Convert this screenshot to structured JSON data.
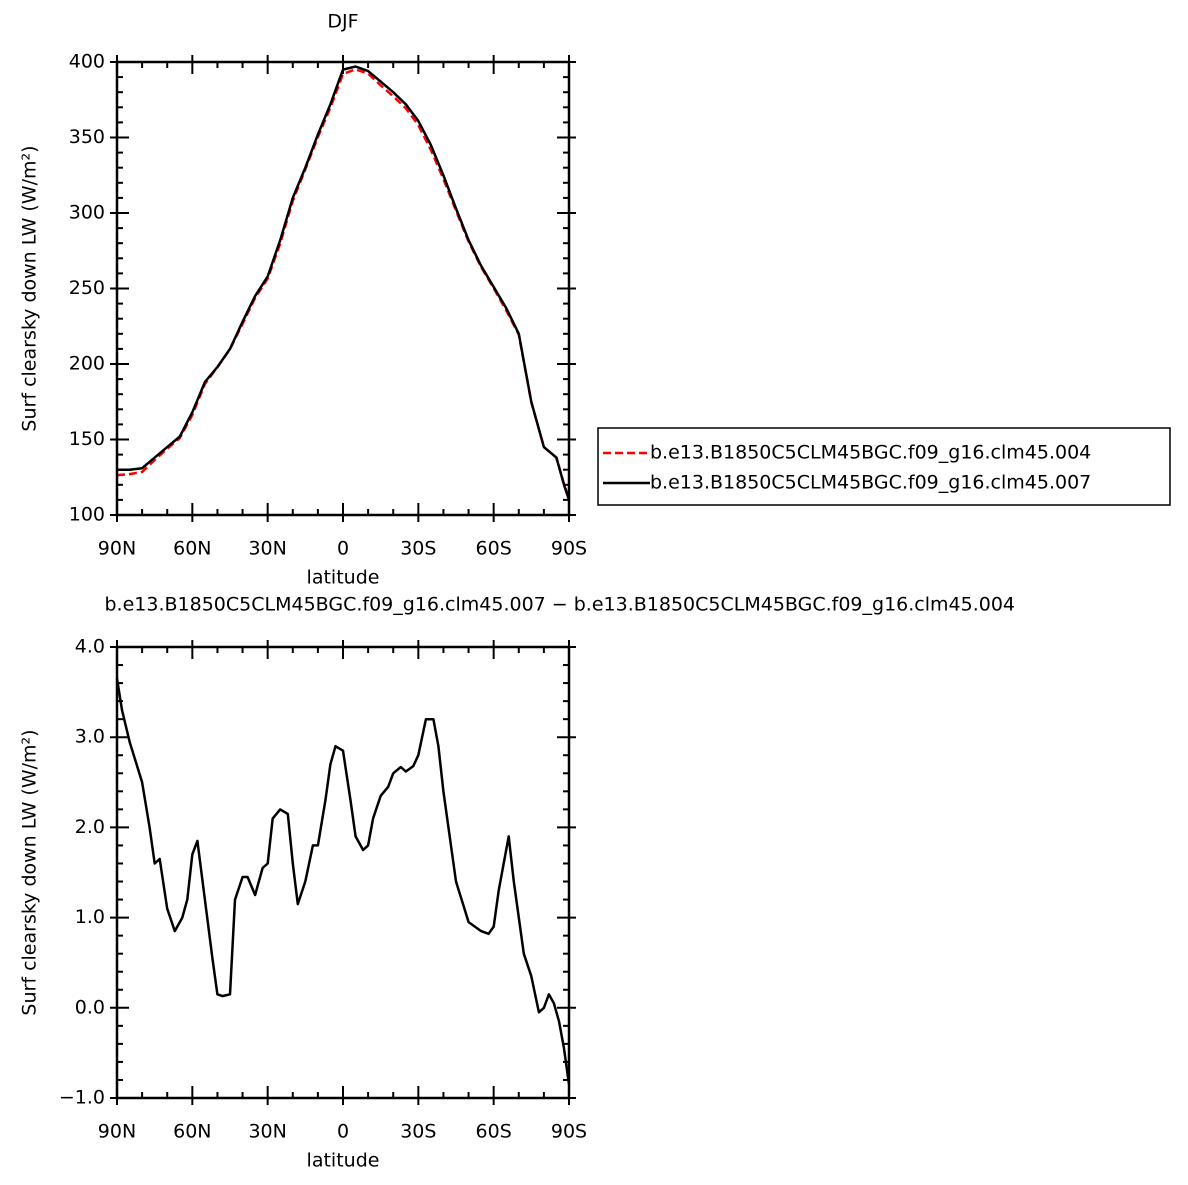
{
  "chart_data": [
    {
      "type": "line",
      "title": "DJF",
      "xlabel": "latitude",
      "ylabel": "Surf clearsky down LW (W/m²)",
      "x": [
        90,
        85,
        80,
        75,
        70,
        65,
        60,
        55,
        50,
        45,
        40,
        35,
        30,
        25,
        20,
        15,
        10,
        5,
        0,
        -5,
        -10,
        -15,
        -20,
        -25,
        -30,
        -35,
        -40,
        -45,
        -50,
        -55,
        -60,
        -65,
        -70,
        -75,
        -80,
        -85,
        -88,
        -90
      ],
      "series": [
        {
          "name": "b.e13.B1850C5CLM45BGC.f09_g16.clm45.004",
          "color": "#ff0000",
          "dash": true,
          "values": [
            126.4,
            127.1,
            128.5,
            136.4,
            143.9,
            151,
            166.2,
            186.8,
            197.8,
            209.9,
            226.6,
            243.7,
            256.6,
            279.9,
            308.1,
            328.9,
            350.3,
            369.8,
            392.1,
            395.1,
            392.3,
            384.6,
            377.3,
            369.4,
            358.2,
            341.8,
            322.6,
            301.6,
            281,
            264.2,
            250.2,
            235.5,
            219.4,
            174.7,
            145,
            138,
            120.4,
            110.9
          ]
        },
        {
          "name": "b.e13.B1850C5CLM45BGC.f09_g16.clm45.007",
          "color": "#000000",
          "dash": false,
          "values": [
            130,
            130,
            131,
            138,
            145,
            152,
            168,
            188,
            198,
            210,
            228,
            245,
            258,
            282,
            310,
            330,
            352,
            372,
            395,
            397,
            394,
            387,
            380,
            372,
            361,
            345,
            325,
            303,
            282,
            265,
            251,
            237,
            220,
            175,
            145,
            138,
            120,
            110
          ]
        }
      ],
      "xlim": [
        90,
        -90
      ],
      "xticks": [
        {
          "value": 90,
          "label": "90N"
        },
        {
          "value": 60,
          "label": "60N"
        },
        {
          "value": 30,
          "label": "30N"
        },
        0,
        {
          "value": -30,
          "label": "30S"
        },
        {
          "value": -60,
          "label": "60S"
        },
        {
          "value": -90,
          "label": "90S"
        }
      ],
      "ylim": [
        100,
        400
      ],
      "yticks": [
        100,
        150,
        200,
        250,
        300,
        350,
        400
      ],
      "legend": "right"
    },
    {
      "type": "line",
      "title": "b.e13.B1850C5CLM45BGC.f09_g16.clm45.007 − b.e13.B1850C5CLM45BGC.f09_g16.clm45.004",
      "xlabel": "latitude",
      "ylabel": "Surf clearsky down LW (W/m²)",
      "x": [
        90,
        88,
        85,
        80,
        77,
        75,
        73,
        70,
        67,
        64,
        62,
        60,
        58,
        55,
        52,
        50,
        48,
        45,
        43,
        40,
        38,
        35,
        32,
        30,
        28,
        25,
        22,
        20,
        18,
        15,
        12,
        10,
        7,
        5,
        3,
        0,
        -3,
        -5,
        -8,
        -10,
        -12,
        -15,
        -18,
        -20,
        -23,
        -25,
        -28,
        -30,
        -33,
        -36,
        -38,
        -40,
        -45,
        -50,
        -55,
        -58,
        -60,
        -62,
        -66,
        -68,
        -72,
        -75,
        -78,
        -80,
        -82,
        -84,
        -86,
        -88,
        -90
      ],
      "series": [
        {
          "color": "#000000",
          "dash": false,
          "values": [
            3.65,
            3.3,
            2.95,
            2.5,
            2.0,
            1.6,
            1.65,
            1.1,
            0.85,
            1.0,
            1.2,
            1.7,
            1.85,
            1.2,
            0.55,
            0.15,
            0.13,
            0.15,
            1.2,
            1.45,
            1.45,
            1.25,
            1.55,
            1.6,
            2.1,
            2.2,
            2.15,
            1.6,
            1.15,
            1.4,
            1.8,
            1.8,
            2.3,
            2.7,
            2.9,
            2.85,
            2.3,
            1.9,
            1.75,
            1.8,
            2.1,
            2.35,
            2.45,
            2.6,
            2.67,
            2.62,
            2.68,
            2.8,
            3.2,
            3.2,
            2.9,
            2.4,
            1.4,
            0.95,
            0.85,
            0.82,
            0.9,
            1.3,
            1.9,
            1.4,
            0.6,
            0.35,
            -0.05,
            0.0,
            0.15,
            0.05,
            -0.15,
            -0.45,
            -0.85
          ]
        }
      ],
      "xlim": [
        90,
        -90
      ],
      "xticks": [
        {
          "value": 90,
          "label": "90N"
        },
        {
          "value": 60,
          "label": "60N"
        },
        {
          "value": 30,
          "label": "30N"
        },
        0,
        {
          "value": -30,
          "label": "30S"
        },
        {
          "value": -60,
          "label": "60S"
        },
        {
          "value": -90,
          "label": "90S"
        }
      ],
      "ylim": [
        -1,
        4
      ],
      "yticks": [
        {
          "value": -1,
          "label": "−1.0"
        },
        {
          "value": 0,
          "label": "0.0"
        },
        {
          "value": 1,
          "label": "1.0"
        },
        {
          "value": 2,
          "label": "2.0"
        },
        {
          "value": 3,
          "label": "3.0"
        },
        {
          "value": 4,
          "label": "4.0"
        }
      ]
    }
  ]
}
